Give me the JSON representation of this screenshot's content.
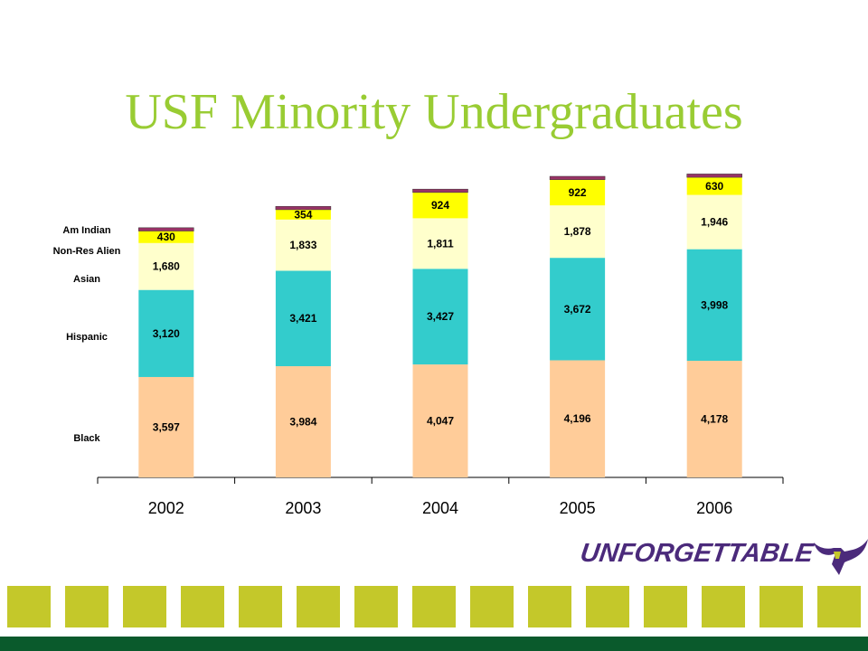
{
  "title": "USF Minority Undergraduates",
  "logo": {
    "text": "UNFORGETTABLE",
    "icon": "bull-horns-icon",
    "color": "#4b2a7b"
  },
  "colors": {
    "title": "#99cc33",
    "tiles": "#c4c82a",
    "band": "#0a5a2c"
  },
  "chart_data": {
    "type": "bar",
    "stacked": true,
    "categories": [
      "2002",
      "2003",
      "2004",
      "2005",
      "2006"
    ],
    "series": [
      {
        "name": "Black",
        "color": "#ffcc99",
        "values": [
          3597,
          3984,
          4047,
          4196,
          4178
        ]
      },
      {
        "name": "Hispanic",
        "color": "#33cccc",
        "values": [
          3120,
          3421,
          3427,
          3672,
          3998
        ]
      },
      {
        "name": "Asian",
        "color": "#ffffcc",
        "values": [
          1680,
          1833,
          1811,
          1878,
          1946
        ]
      },
      {
        "name": "Non-Res Alien",
        "color": "#ffff00",
        "values": [
          430,
          354,
          924,
          922,
          630
        ]
      },
      {
        "name": "Am Indian",
        "color": "#993366",
        "values": [
          120,
          120,
          120,
          120,
          120
        ]
      }
    ],
    "data_labels": [
      [
        "3,597",
        "3,984",
        "4,047",
        "4,196",
        "4,178"
      ],
      [
        "3,120",
        "3,421",
        "3,427",
        "3,672",
        "3,998"
      ],
      [
        "1,680",
        "1,833",
        "1,811",
        "1,878",
        "1,946"
      ],
      [
        "430",
        "354",
        "924",
        "922",
        "630"
      ]
    ],
    "ylim": [
      0,
      10950
    ],
    "grid": false,
    "legend": "left"
  }
}
